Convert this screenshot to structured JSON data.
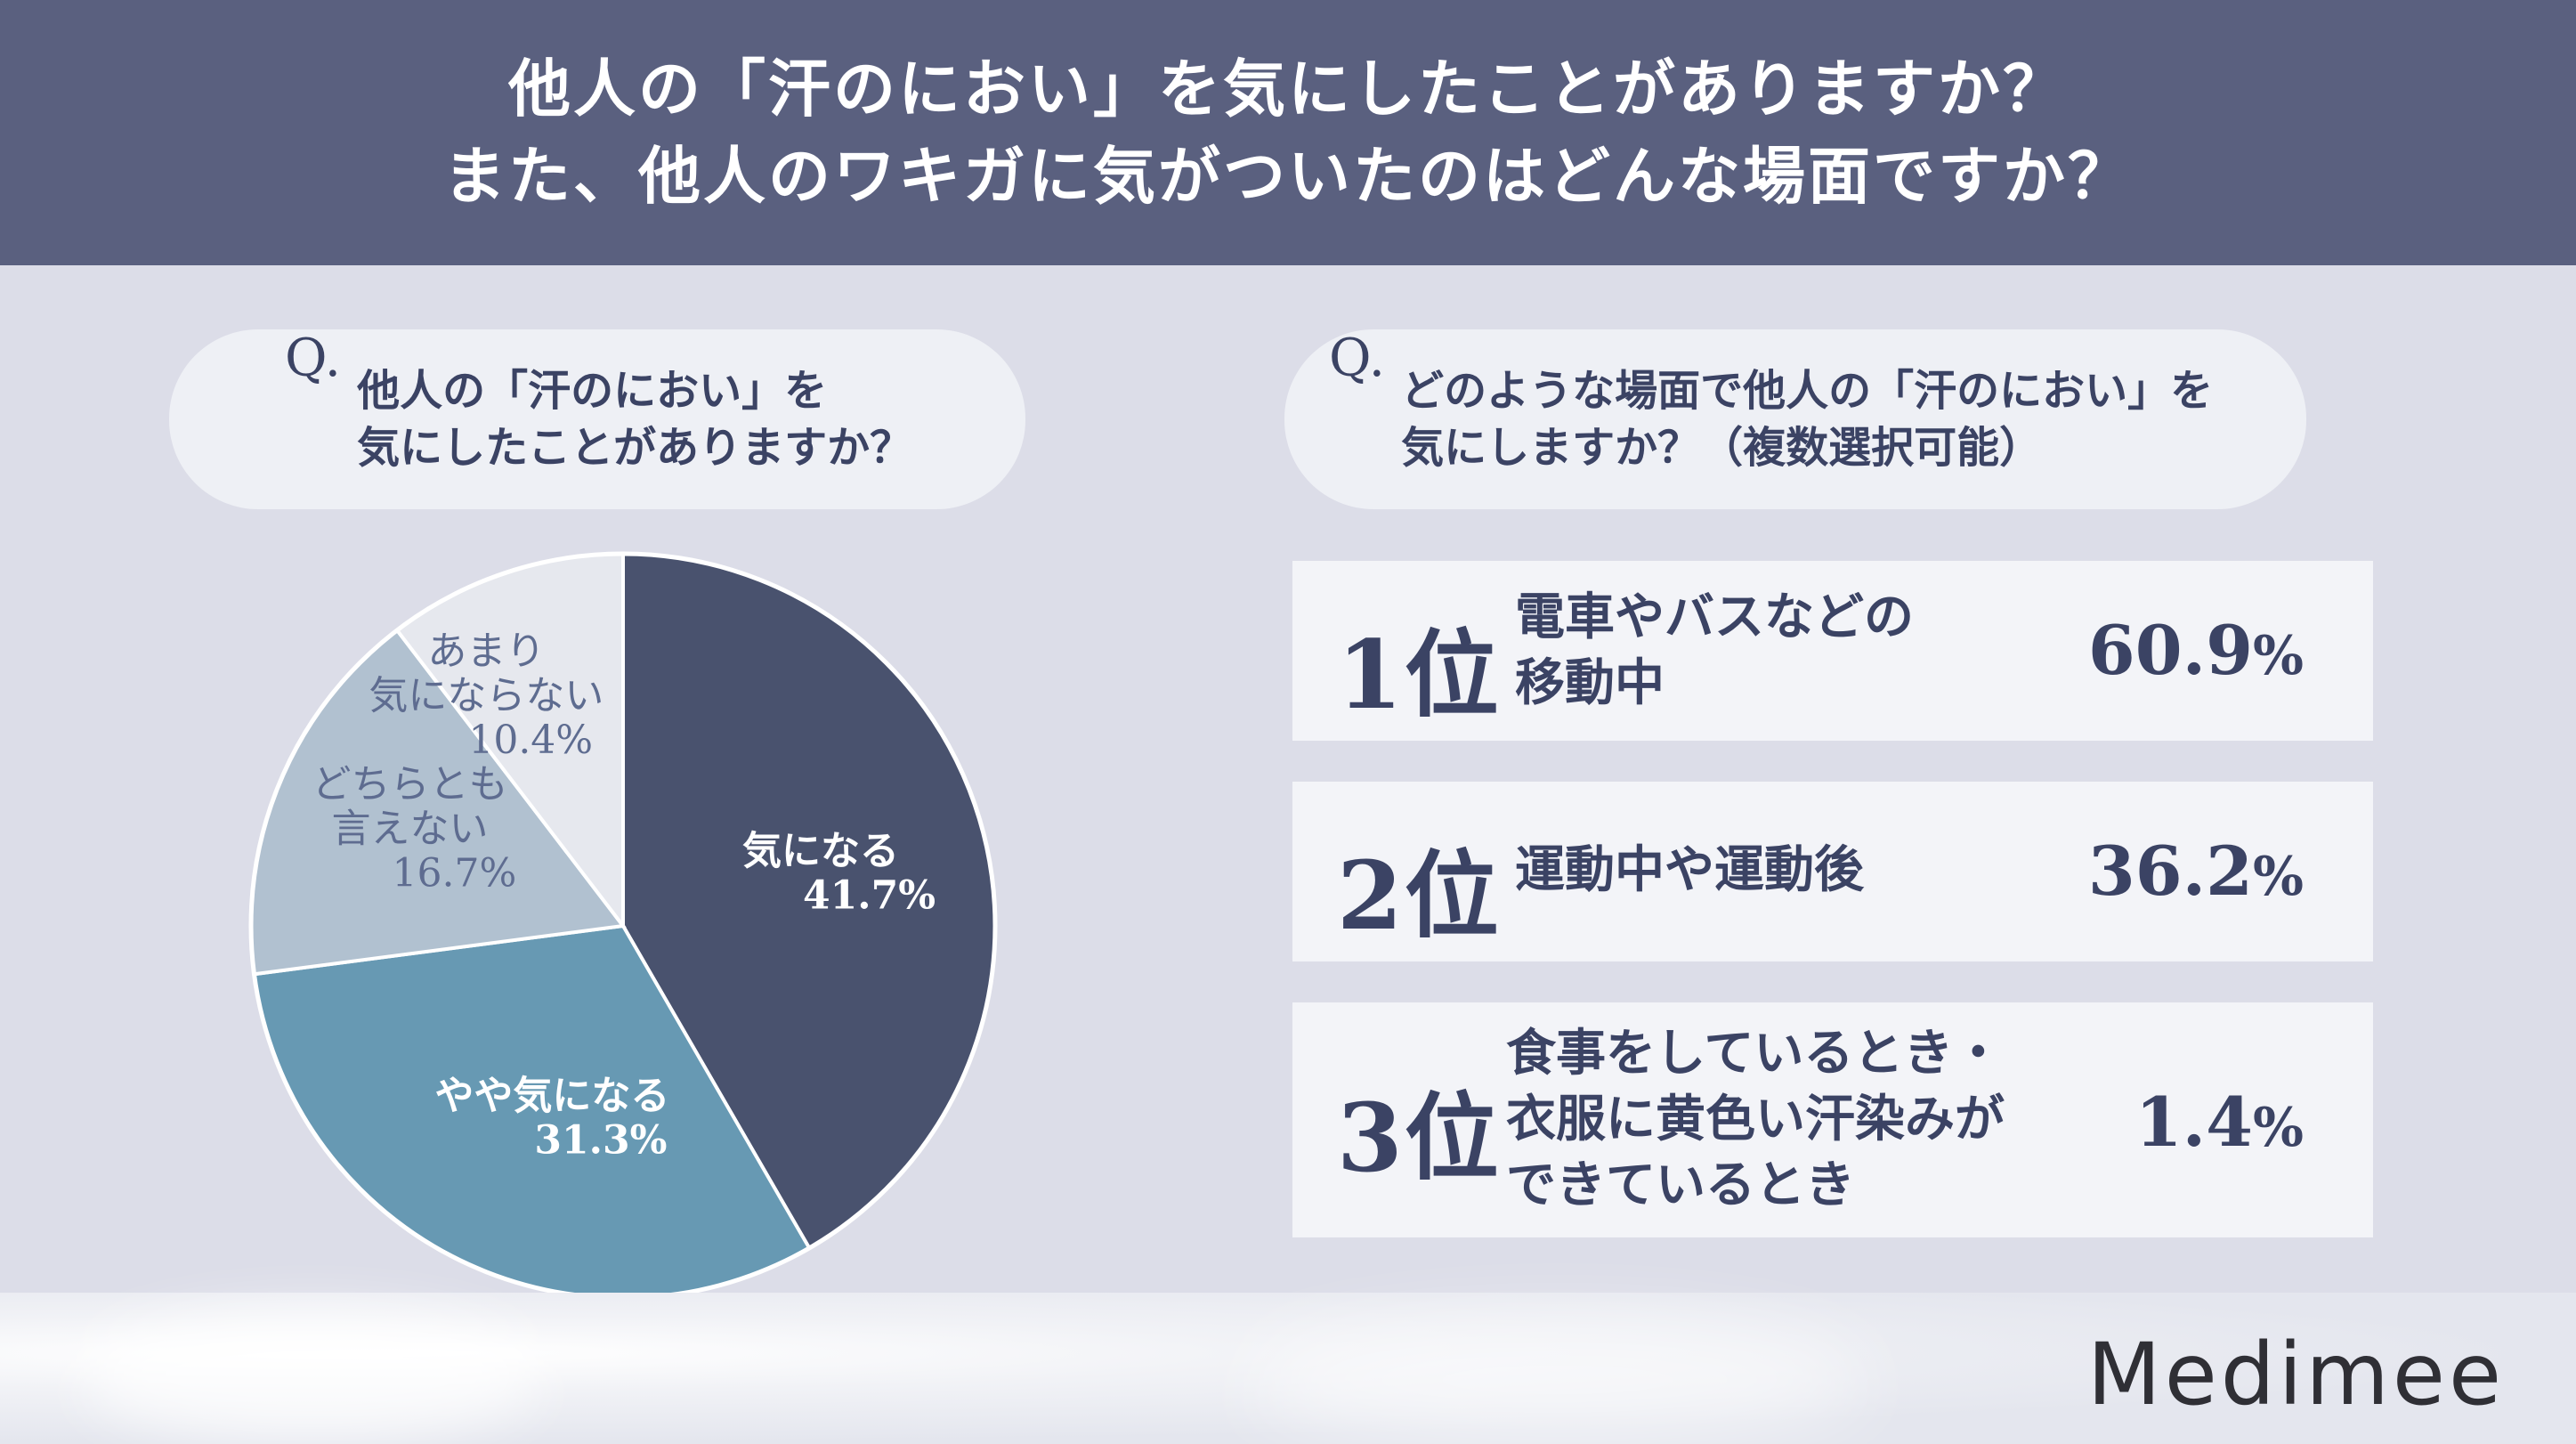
{
  "title": {
    "line1": "他人の「汗のにおい」を気にしたことがありますか？",
    "line2": "また、他人のワキガに気がついたのはどんな場面ですか？"
  },
  "left_question": {
    "prefix": "Q.",
    "line1": "他人の「汗のにおい」を",
    "line2": "気にしたことがありますか？"
  },
  "right_question": {
    "prefix": "Q.",
    "line1": "どのような場面で他人の「汗のにおい」を",
    "line2": "気にしますか？（複数選択可能）"
  },
  "chart_data": [
    {
      "type": "pie",
      "title": "他人の「汗のにおい」を気にしたことがありますか？",
      "slices": [
        {
          "label": "気になる",
          "value": 41.7,
          "value_label": "41.7%",
          "color": "#49526e"
        },
        {
          "label": "やや気になる",
          "value": 31.3,
          "value_label": "31.3%",
          "color": "#6799b3"
        },
        {
          "label": "どちらとも言えない",
          "label_lines": [
            "どちらとも",
            "言えない"
          ],
          "value": 16.7,
          "value_label": "16.7%",
          "color": "#b1c1d0"
        },
        {
          "label": "あまり気にならない",
          "label_lines": [
            "あまり",
            "気にならない"
          ],
          "value": 10.4,
          "value_label": "10.4%",
          "color": "#e6e8ee"
        }
      ]
    },
    {
      "type": "table",
      "title": "どのような場面で他人の「汗のにおい」を気にしますか？（複数選択可能）",
      "rows": [
        {
          "rank": "1位",
          "lines": [
            "電車やバスなどの",
            "移動中"
          ],
          "value": 60.9,
          "value_label": "60.9"
        },
        {
          "rank": "2位",
          "lines": [
            "運動中や運動後"
          ],
          "value": 36.2,
          "value_label": "36.2"
        },
        {
          "rank": "3位",
          "lines": [
            "食事をしているとき・",
            "衣服に黄色い汗染みが",
            "できているとき"
          ],
          "value": 1.4,
          "value_label": "1.4"
        }
      ],
      "unit": "%"
    }
  ],
  "colors": {
    "header_bg": "#5a607f",
    "page_bg": "#dcdde8",
    "text": "#3b4364"
  },
  "logo": "Medimee"
}
